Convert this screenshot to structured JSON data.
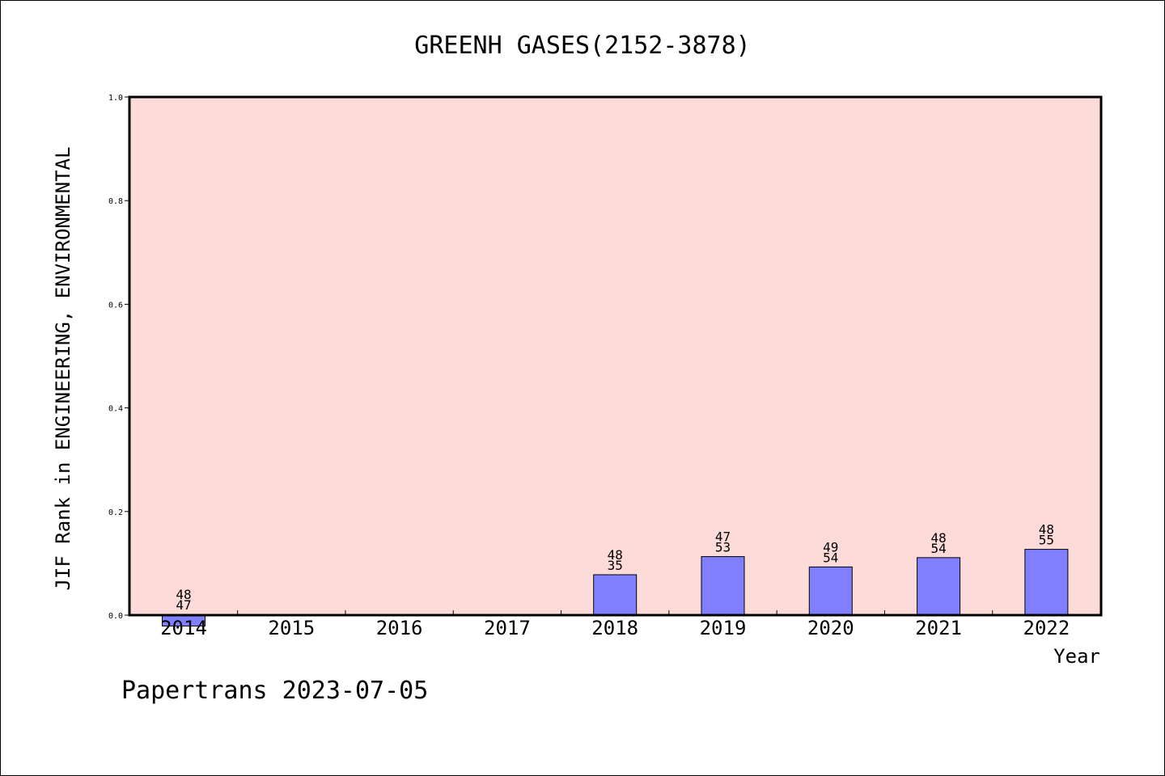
{
  "chart_data": {
    "type": "bar",
    "title": "GREENH GASES(2152-3878)",
    "xlabel": "Year",
    "ylabel": "JIF Rank in ENGINEERING, ENVIRONMENTAL",
    "categories": [
      "2014",
      "2015",
      "2016",
      "2017",
      "2018",
      "2019",
      "2020",
      "2021",
      "2022"
    ],
    "values": [
      -0.021,
      null,
      null,
      null,
      0.078,
      0.113,
      0.093,
      0.111,
      0.127
    ],
    "label_top": [
      "48",
      null,
      null,
      null,
      "48",
      "47",
      "49",
      "48",
      "48"
    ],
    "label_bottom": [
      "47",
      null,
      null,
      null,
      "35",
      "53",
      "54",
      "54",
      "55"
    ],
    "ylim": [
      0.0,
      1.0
    ],
    "yticks": [
      "0.0",
      "0.2",
      "0.4",
      "0.6",
      "0.8",
      "1.0"
    ],
    "grid": false,
    "colors": {
      "plot_background": "#fddbd8",
      "bar_fill": "#8080ff",
      "bar_edge": "#000000"
    }
  },
  "footer": "Papertrans 2023-07-05"
}
